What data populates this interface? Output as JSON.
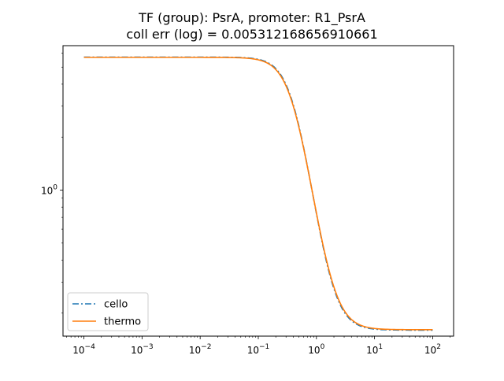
{
  "chart_data": {
    "type": "line",
    "title_lines": [
      "TF (group): PsrA, promoter: R1_PsrA",
      "coll err (log) = 0.005312168656910661"
    ],
    "xlabel": "",
    "ylabel": "",
    "xscale": "log",
    "yscale": "log",
    "xlim": [
      4.37e-05,
      229
    ],
    "ylim": [
      0.148,
      6.62
    ],
    "grid": false,
    "legend_position": "lower-left",
    "x_ticks": [
      {
        "value": 0.0001,
        "base": "10",
        "exp": "−4"
      },
      {
        "value": 0.001,
        "base": "10",
        "exp": "−3"
      },
      {
        "value": 0.01,
        "base": "10",
        "exp": "−2"
      },
      {
        "value": 0.1,
        "base": "10",
        "exp": "−1"
      },
      {
        "value": 1,
        "base": "10",
        "exp": "0"
      },
      {
        "value": 10,
        "base": "10",
        "exp": "1"
      },
      {
        "value": 100,
        "base": "10",
        "exp": "2"
      }
    ],
    "y_ticks": [
      {
        "value": 1,
        "base": "10",
        "exp": "0"
      }
    ],
    "series": [
      {
        "name": "cello",
        "style": "dashdot",
        "color": "#1f77b4",
        "ymin": 0.16,
        "ymax": 5.7,
        "K": 0.415,
        "n": 2.45,
        "x_range": [
          0.0001,
          100
        ]
      },
      {
        "name": "thermo",
        "style": "solid",
        "color": "#ff7f0e",
        "ymin": 0.161,
        "ymax": 5.68,
        "K": 0.41,
        "n": 2.4,
        "x_range": [
          0.0001,
          100
        ]
      }
    ]
  }
}
